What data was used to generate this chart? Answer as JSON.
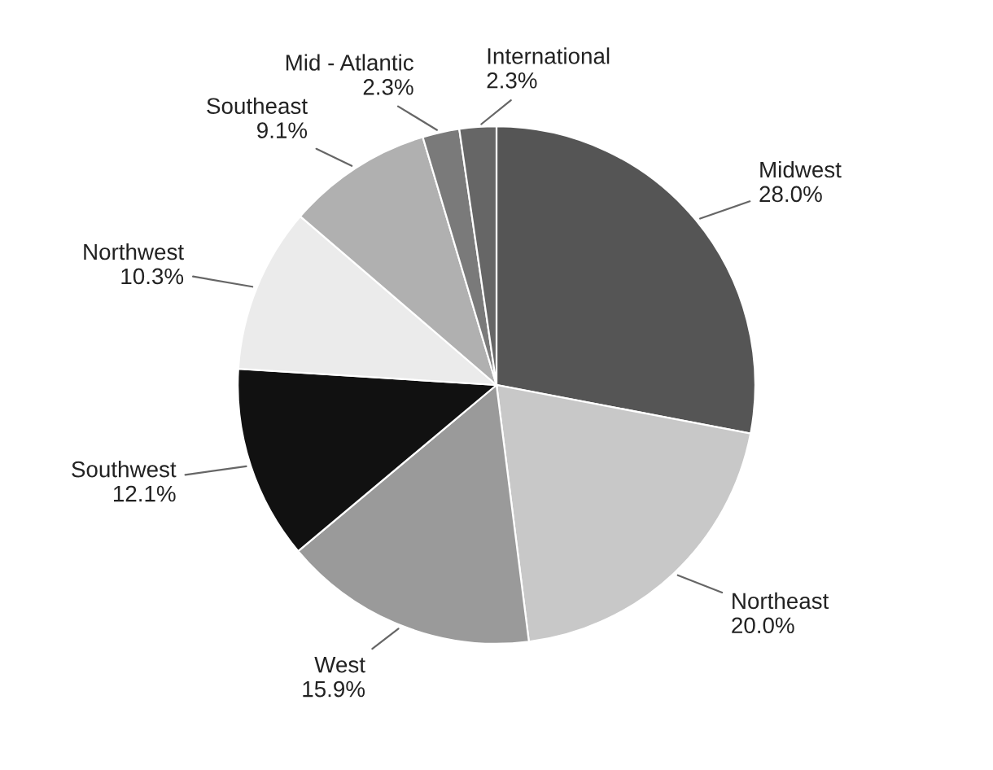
{
  "chart_data": {
    "type": "pie",
    "categories": [
      "Midwest",
      "Northeast",
      "West",
      "Southwest",
      "Northwest",
      "Southeast",
      "Mid - Atlantic",
      "International"
    ],
    "values": [
      28.0,
      20.0,
      15.9,
      12.1,
      10.3,
      9.1,
      2.3,
      2.3
    ],
    "value_labels": [
      "28.0%",
      "20.0%",
      "15.9%",
      "12.1%",
      "10.3%",
      "9.1%",
      "2.3%",
      "2.3%"
    ],
    "colors": [
      "#555555",
      "#c8c8c8",
      "#9a9a9a",
      "#111111",
      "#ebebeb",
      "#b0b0b0",
      "#7a7a7a",
      "#666666"
    ],
    "legend": false
  }
}
